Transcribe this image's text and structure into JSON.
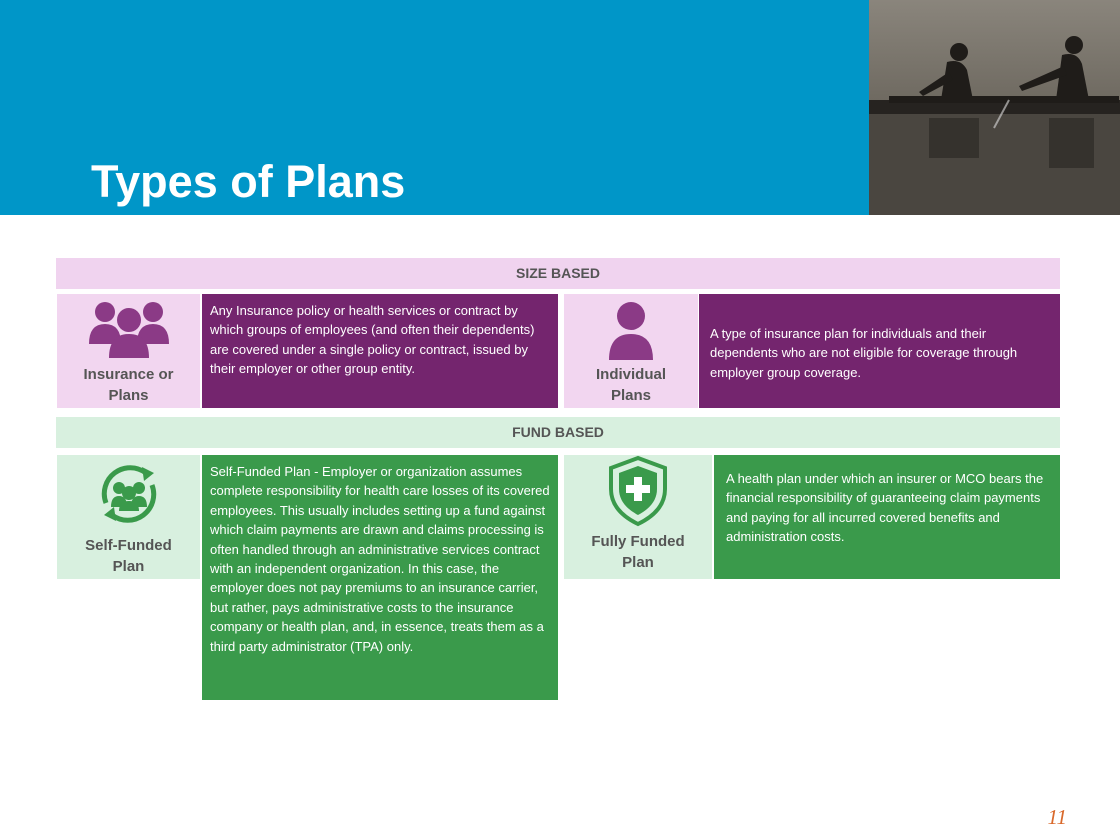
{
  "slide": {
    "title": "Types of Plans",
    "page_number": "11"
  },
  "photo": {
    "subject": "rowers-silhouette-image"
  },
  "size_based": {
    "header": "SIZE BASED",
    "group": {
      "label_line1": "Insurance or",
      "label_line2": "Plans",
      "icon": "group-people-icon",
      "description": "Any Insurance policy or health services or contract by which groups of employees (and often their dependents) are covered under a single policy or contract, issued by their employer or other group entity."
    },
    "individual": {
      "label_line1": "Individual",
      "label_line2": "Plans",
      "icon": "person-icon",
      "description": "A type of insurance plan for individuals and their dependents who are not eligible for coverage through employer group coverage."
    }
  },
  "fund_based": {
    "header": "FUND BASED",
    "self_funded": {
      "label_line1": "Self-Funded",
      "label_line2": "Plan",
      "icon": "people-cycle-icon",
      "description": "Self-Funded Plan - Employer or organization assumes complete responsibility for health care losses of its covered employees. This usually includes setting up a fund against which claim payments are drawn and claims processing is often handled through an administrative services contract with an independent organization. In this case, the employer does not pay premiums to an insurance carrier, but rather, pays administrative costs to the insurance company or health plan, and, in essence, treats them as a third party administrator (TPA) only."
    },
    "fully_funded": {
      "label_line1": "Fully Funded",
      "label_line2": "Plan",
      "icon": "shield-plus-icon",
      "description": "A health plan under which an insurer or MCO bears the financial responsibility of guaranteeing claim payments and paying for all incurred covered benefits and administration costs."
    }
  },
  "colors": {
    "header_blue": "#0096c8",
    "purple_dark": "#74256e",
    "purple_light": "#f2d6f0",
    "green_dark": "#3a9a4b",
    "green_light": "#d8f0df",
    "page_number": "#d9692b"
  }
}
